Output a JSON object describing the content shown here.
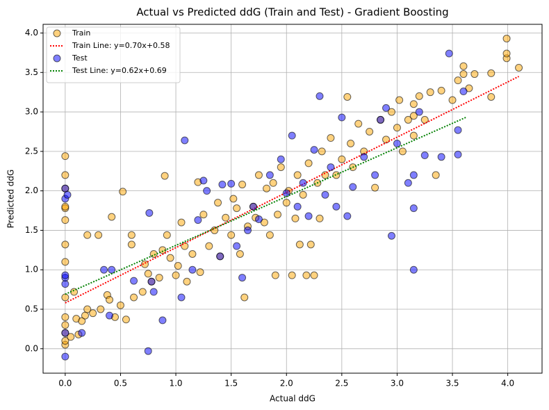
{
  "chart_data": {
    "type": "scatter",
    "title": "Actual vs Predicted ddG (Train and Test) - Gradient Boosting",
    "x_label": "Actual ddG",
    "y_label": "Predicted ddG",
    "xlim": [
      -0.2,
      4.31
    ],
    "ylim": [
      -0.31,
      4.11
    ],
    "xticks": [
      {
        "value": 0,
        "label": "0.0"
      },
      {
        "value": 0.5,
        "label": "0.5"
      },
      {
        "value": 1,
        "label": "1.0"
      },
      {
        "value": 1.5,
        "label": "1.5"
      },
      {
        "value": 2,
        "label": "2.0"
      },
      {
        "value": 2.5,
        "label": "2.5"
      },
      {
        "value": 3,
        "label": "3.0"
      },
      {
        "value": 3.5,
        "label": "3.5"
      },
      {
        "value": 4,
        "label": "4.0"
      }
    ],
    "yticks": [
      {
        "value": 0,
        "label": "0.0"
      },
      {
        "value": 0.5,
        "label": "0.5"
      },
      {
        "value": 1,
        "label": "1.0"
      },
      {
        "value": 1.5,
        "label": "1.5"
      },
      {
        "value": 2,
        "label": "2.0"
      },
      {
        "value": 2.5,
        "label": "2.5"
      },
      {
        "value": 3,
        "label": "3.0"
      },
      {
        "value": 3.5,
        "label": "3.5"
      },
      {
        "value": 4,
        "label": "4.0"
      }
    ],
    "grid": true,
    "legend": "upper-left",
    "series": [
      {
        "name": "Train",
        "kind": "scatter",
        "color": "#ffa500",
        "x": [
          0,
          0,
          0,
          0,
          0,
          0,
          0,
          0,
          0,
          0,
          0,
          0,
          0,
          0,
          0.05,
          0.08,
          0.1,
          0.12,
          0.15,
          0.18,
          0.2,
          0.2,
          0.25,
          0.3,
          0.32,
          0.38,
          0.4,
          0.42,
          0.45,
          0.5,
          0.52,
          0.55,
          0.6,
          0.6,
          0.62,
          0.7,
          0.72,
          0.75,
          0.78,
          0.8,
          0.85,
          0.88,
          0.9,
          0.92,
          0.95,
          1.0,
          1.02,
          1.05,
          1.08,
          1.1,
          1.15,
          1.2,
          1.22,
          1.25,
          1.3,
          1.35,
          1.38,
          1.4,
          1.45,
          1.5,
          1.52,
          1.55,
          1.58,
          1.6,
          1.62,
          1.65,
          1.7,
          1.72,
          1.75,
          1.8,
          1.82,
          1.85,
          1.88,
          1.9,
          1.92,
          1.95,
          2.0,
          2.02,
          2.05,
          2.08,
          2.1,
          2.12,
          2.15,
          2.18,
          2.2,
          2.22,
          2.25,
          2.28,
          2.3,
          2.32,
          2.35,
          2.4,
          2.45,
          2.5,
          2.55,
          2.58,
          2.6,
          2.65,
          2.7,
          2.75,
          2.8,
          2.85,
          2.9,
          2.95,
          3.0,
          3.02,
          3.05,
          3.1,
          3.15,
          3.15,
          3.15,
          3.2,
          3.25,
          3.3,
          3.35,
          3.4,
          3.5,
          3.55,
          3.6,
          3.6,
          3.65,
          3.7,
          3.85,
          3.85,
          3.99,
          3.99,
          3.99,
          4.1
        ],
        "values": [
          0.05,
          0.1,
          0.2,
          0.3,
          0.4,
          0.65,
          1.1,
          1.32,
          1.63,
          1.78,
          1.8,
          2.03,
          2.2,
          2.44,
          0.15,
          0.72,
          0.38,
          0.18,
          0.35,
          0.42,
          0.5,
          1.44,
          0.45,
          1.44,
          0.5,
          0.68,
          0.62,
          1.67,
          0.4,
          0.55,
          1.99,
          0.37,
          1.32,
          1.44,
          0.65,
          0.72,
          1.07,
          0.95,
          0.85,
          1.2,
          0.9,
          1.25,
          2.19,
          1.44,
          1.15,
          0.93,
          1.05,
          1.6,
          1.3,
          0.85,
          1.2,
          2.11,
          0.97,
          1.7,
          1.3,
          1.5,
          1.85,
          1.17,
          1.66,
          1.44,
          1.9,
          1.78,
          1.2,
          2.08,
          0.65,
          1.55,
          1.8,
          1.66,
          2.2,
          1.6,
          2.03,
          1.44,
          2.1,
          0.93,
          1.7,
          2.3,
          1.85,
          2.0,
          0.93,
          1.65,
          2.2,
          1.32,
          1.95,
          0.93,
          2.35,
          1.32,
          0.93,
          2.1,
          1.65,
          2.5,
          2.2,
          2.67,
          2.2,
          2.4,
          3.19,
          2.6,
          2.3,
          2.85,
          2.5,
          2.75,
          2.04,
          2.9,
          2.65,
          3.0,
          2.8,
          3.15,
          2.5,
          2.9,
          3.1,
          2.95,
          2.7,
          3.2,
          2.9,
          3.25,
          2.2,
          3.27,
          3.15,
          3.4,
          3.48,
          3.58,
          3.3,
          3.48,
          3.49,
          3.19,
          3.68,
          3.74,
          3.93,
          3.56
        ]
      },
      {
        "name": "Train Line: y=0.70x+0.58",
        "kind": "line",
        "color": "#ff0000",
        "x": [
          0,
          4.1
        ],
        "values": [
          0.58,
          3.45
        ]
      },
      {
        "name": "Test",
        "kind": "scatter",
        "color": "#0000ff",
        "x": [
          0,
          0,
          0,
          0,
          0,
          0,
          0,
          0.02,
          0.15,
          0.35,
          0.4,
          0.42,
          0.62,
          0.75,
          0.76,
          0.78,
          0.8,
          0.88,
          1.05,
          1.08,
          1.15,
          1.2,
          1.25,
          1.28,
          1.4,
          1.42,
          1.5,
          1.55,
          1.6,
          1.65,
          1.7,
          1.75,
          1.85,
          1.95,
          2.0,
          2.05,
          2.1,
          2.15,
          2.2,
          2.25,
          2.3,
          2.35,
          2.4,
          2.45,
          2.5,
          2.55,
          2.6,
          2.7,
          2.8,
          2.85,
          2.9,
          2.95,
          3.0,
          3.1,
          3.15,
          3.15,
          3.15,
          3.2,
          3.25,
          3.4,
          3.47,
          3.55,
          3.55,
          3.6
        ],
        "values": [
          -0.1,
          0.2,
          0.82,
          0.9,
          0.93,
          1.9,
          2.03,
          1.95,
          0.2,
          1.0,
          0.42,
          1.0,
          0.86,
          -0.03,
          1.72,
          0.85,
          0.72,
          0.36,
          0.65,
          2.64,
          1.0,
          1.63,
          2.13,
          2.0,
          1.17,
          2.08,
          2.09,
          1.3,
          0.9,
          1.5,
          1.8,
          1.64,
          2.2,
          2.4,
          1.97,
          2.7,
          1.8,
          2.1,
          1.68,
          2.52,
          3.2,
          1.95,
          2.3,
          1.8,
          2.93,
          1.68,
          2.05,
          2.43,
          2.2,
          2.9,
          3.05,
          1.43,
          2.6,
          2.1,
          1.0,
          1.78,
          2.2,
          3.0,
          2.45,
          2.43,
          3.74,
          2.77,
          2.46,
          3.26
        ]
      },
      {
        "name": "Test Line: y=0.62x+0.69",
        "kind": "line",
        "color": "#008000",
        "x": [
          0,
          3.62
        ],
        "values": [
          0.69,
          2.93
        ]
      }
    ]
  }
}
